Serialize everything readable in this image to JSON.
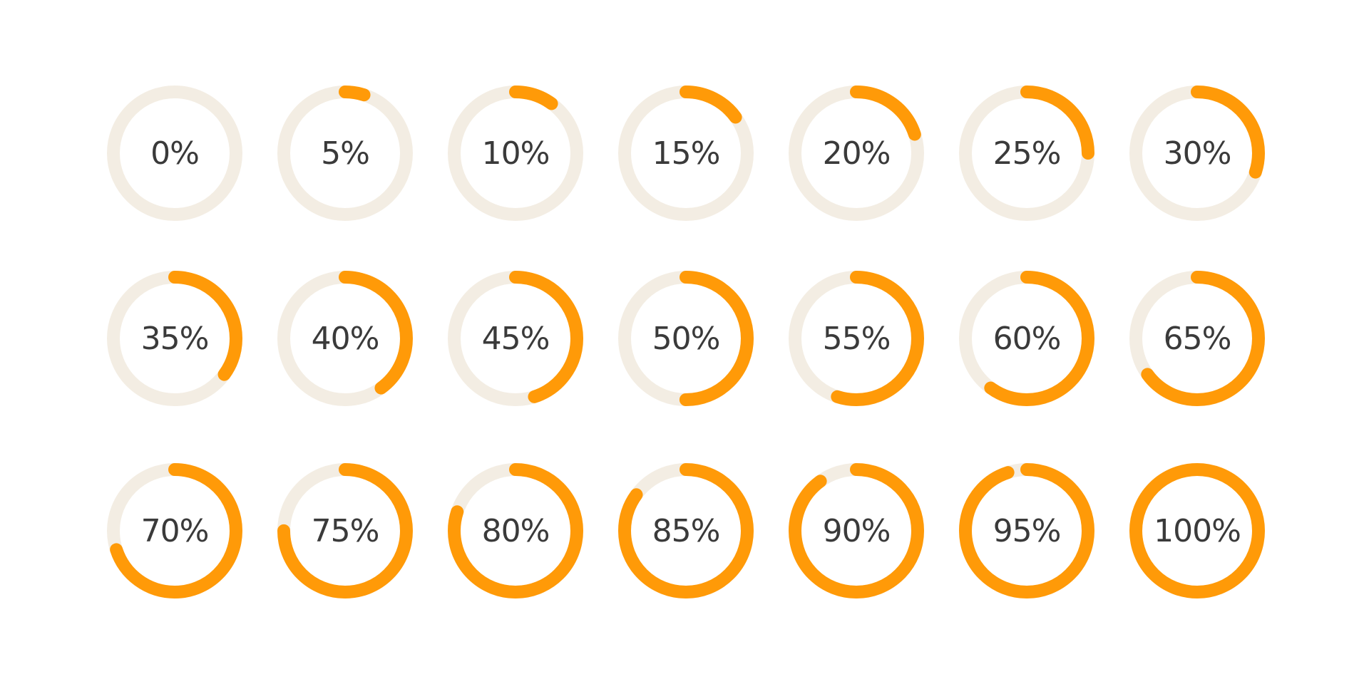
{
  "colors": {
    "track": "#f3ede3",
    "fill": "#ff9a08",
    "text": "#3a3a3a",
    "background": "#ffffff"
  },
  "gauges": [
    {
      "label": "0%",
      "value": 0
    },
    {
      "label": "5%",
      "value": 5
    },
    {
      "label": "10%",
      "value": 10
    },
    {
      "label": "15%",
      "value": 15
    },
    {
      "label": "20%",
      "value": 20
    },
    {
      "label": "25%",
      "value": 25
    },
    {
      "label": "30%",
      "value": 30
    },
    {
      "label": "35%",
      "value": 35
    },
    {
      "label": "40%",
      "value": 40
    },
    {
      "label": "45%",
      "value": 45
    },
    {
      "label": "50%",
      "value": 50
    },
    {
      "label": "55%",
      "value": 55
    },
    {
      "label": "60%",
      "value": 60
    },
    {
      "label": "65%",
      "value": 65
    },
    {
      "label": "70%",
      "value": 70
    },
    {
      "label": "75%",
      "value": 75
    },
    {
      "label": "80%",
      "value": 80
    },
    {
      "label": "85%",
      "value": 85
    },
    {
      "label": "90%",
      "value": 90
    },
    {
      "label": "95%",
      "value": 95
    },
    {
      "label": "100%",
      "value": 100
    }
  ]
}
